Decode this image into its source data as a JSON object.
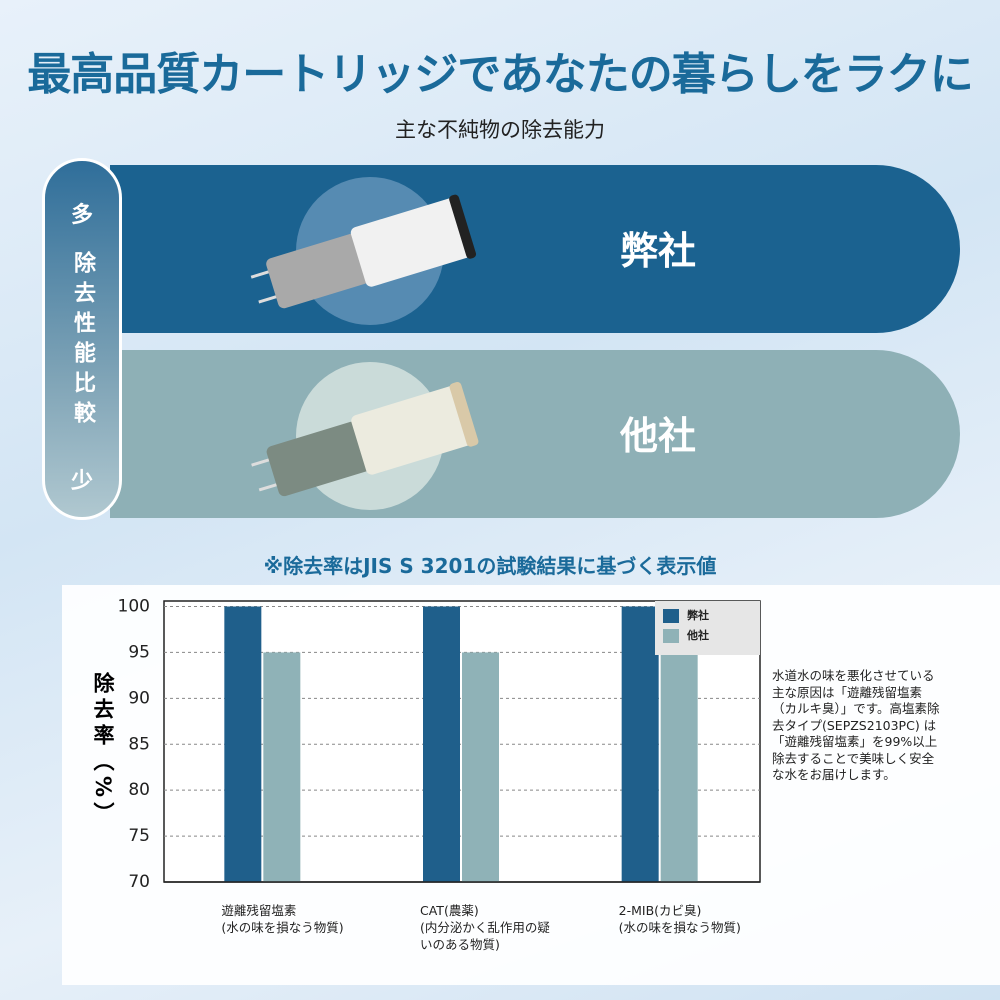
{
  "header": {
    "title": "最高品質カートリッジであなたの暮らしをラクに",
    "subtitle": "主な不純物の除去能力"
  },
  "comparison": {
    "scale_top": "多",
    "scale_label": "除去性能比較",
    "scale_bottom": "少",
    "rows": [
      {
        "label": "弊社"
      },
      {
        "label": "他社"
      }
    ]
  },
  "note": "※除去率はJIS S 3201の試験結果に基づく表示値",
  "chart_data": {
    "type": "bar",
    "y_label": "除去率（%）",
    "categories": [
      "遊離残留塩素",
      "CAT(農薬)",
      "2-MIB(カビ臭)"
    ],
    "category_descriptions": [
      "(水の味を損なう物質)",
      "(内分泌かく乱作用の疑いのある物質)",
      "(水の味を損なう物質)"
    ],
    "series": [
      {
        "name": "弊社",
        "color": "#1f5f8b",
        "values": [
          100,
          100,
          100
        ]
      },
      {
        "name": "他社",
        "color": "#8fb2b7",
        "values": [
          95,
          95,
          95
        ]
      }
    ],
    "ylim": [
      70,
      100.6
    ],
    "yticks": [
      70,
      75,
      80,
      85,
      90,
      95,
      100
    ],
    "grid": true,
    "legend": "top-right"
  },
  "side_text": "水道水の味を悪化させている主な原因は「遊離残留塩素（カルキ臭）」です。高塩素除去タイプ(SEPZS2103PC) は「遊離残留塩素」を99%以上除去することで美味しく安全な水をお届けします。"
}
